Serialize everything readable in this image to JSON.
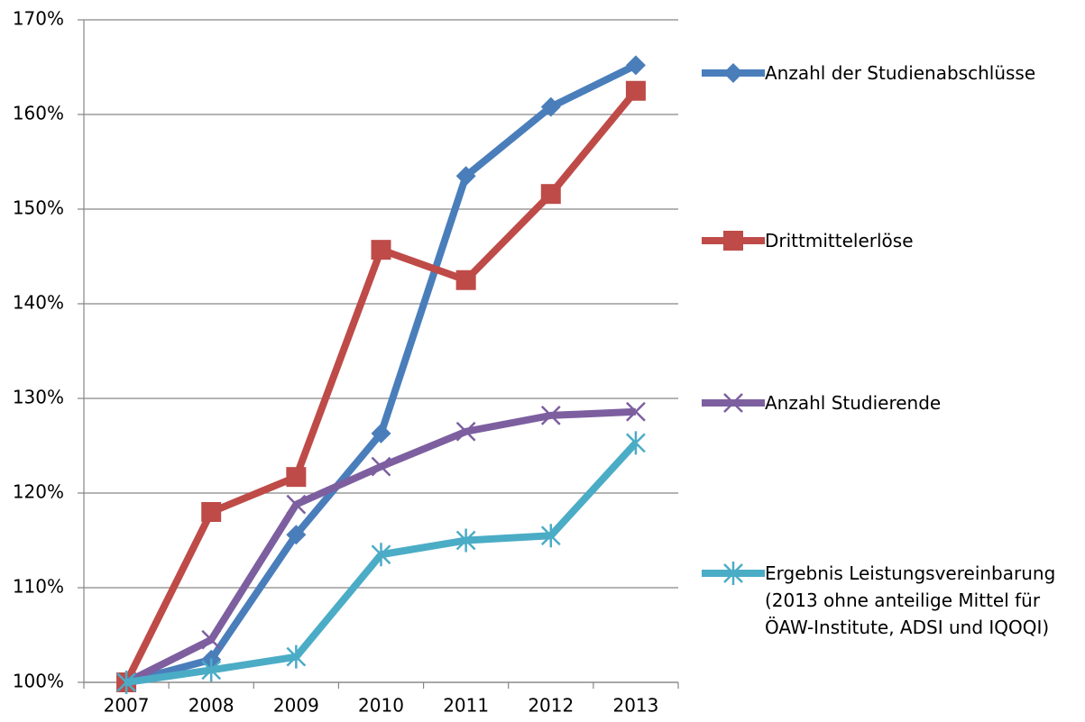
{
  "chart_data": {
    "type": "line",
    "categories": [
      "2007",
      "2008",
      "2009",
      "2010",
      "2011",
      "2012",
      "2013"
    ],
    "series": [
      {
        "name": "Anzahl der Studienabschlüsse",
        "color": "#4a7ebb",
        "marker": "diamond",
        "values": [
          100,
          102.4,
          115.6,
          126.3,
          153.5,
          160.8,
          165.2
        ]
      },
      {
        "name": "Drittmittelerlöse",
        "color": "#be4b48",
        "marker": "square",
        "values": [
          100,
          118.0,
          121.7,
          145.7,
          142.5,
          151.6,
          162.5
        ]
      },
      {
        "name": "Anzahl Studierende",
        "color": "#7d5fa0",
        "marker": "x",
        "values": [
          100,
          104.5,
          118.8,
          122.8,
          126.5,
          128.2,
          128.6
        ]
      },
      {
        "name": "Ergebnis Leistungsvereinbarung (2013 ohne anteilige Mittel für ÖAW-Institute, ADSI und IQOQI)",
        "color": "#4bacc6",
        "marker": "asterisk",
        "values": [
          100,
          101.3,
          102.7,
          113.5,
          115.0,
          115.5,
          125.3
        ]
      }
    ],
    "ylim": [
      100,
      170
    ],
    "yticks": [
      {
        "value": 100,
        "label": "100%"
      },
      {
        "value": 110,
        "label": "110%"
      },
      {
        "value": 120,
        "label": "120%"
      },
      {
        "value": 130,
        "label": "130%"
      },
      {
        "value": 140,
        "label": "140%"
      },
      {
        "value": 150,
        "label": "150%"
      },
      {
        "value": 160,
        "label": "160%"
      },
      {
        "value": 170,
        "label": "170%"
      }
    ],
    "grid": true,
    "legend": "right"
  }
}
